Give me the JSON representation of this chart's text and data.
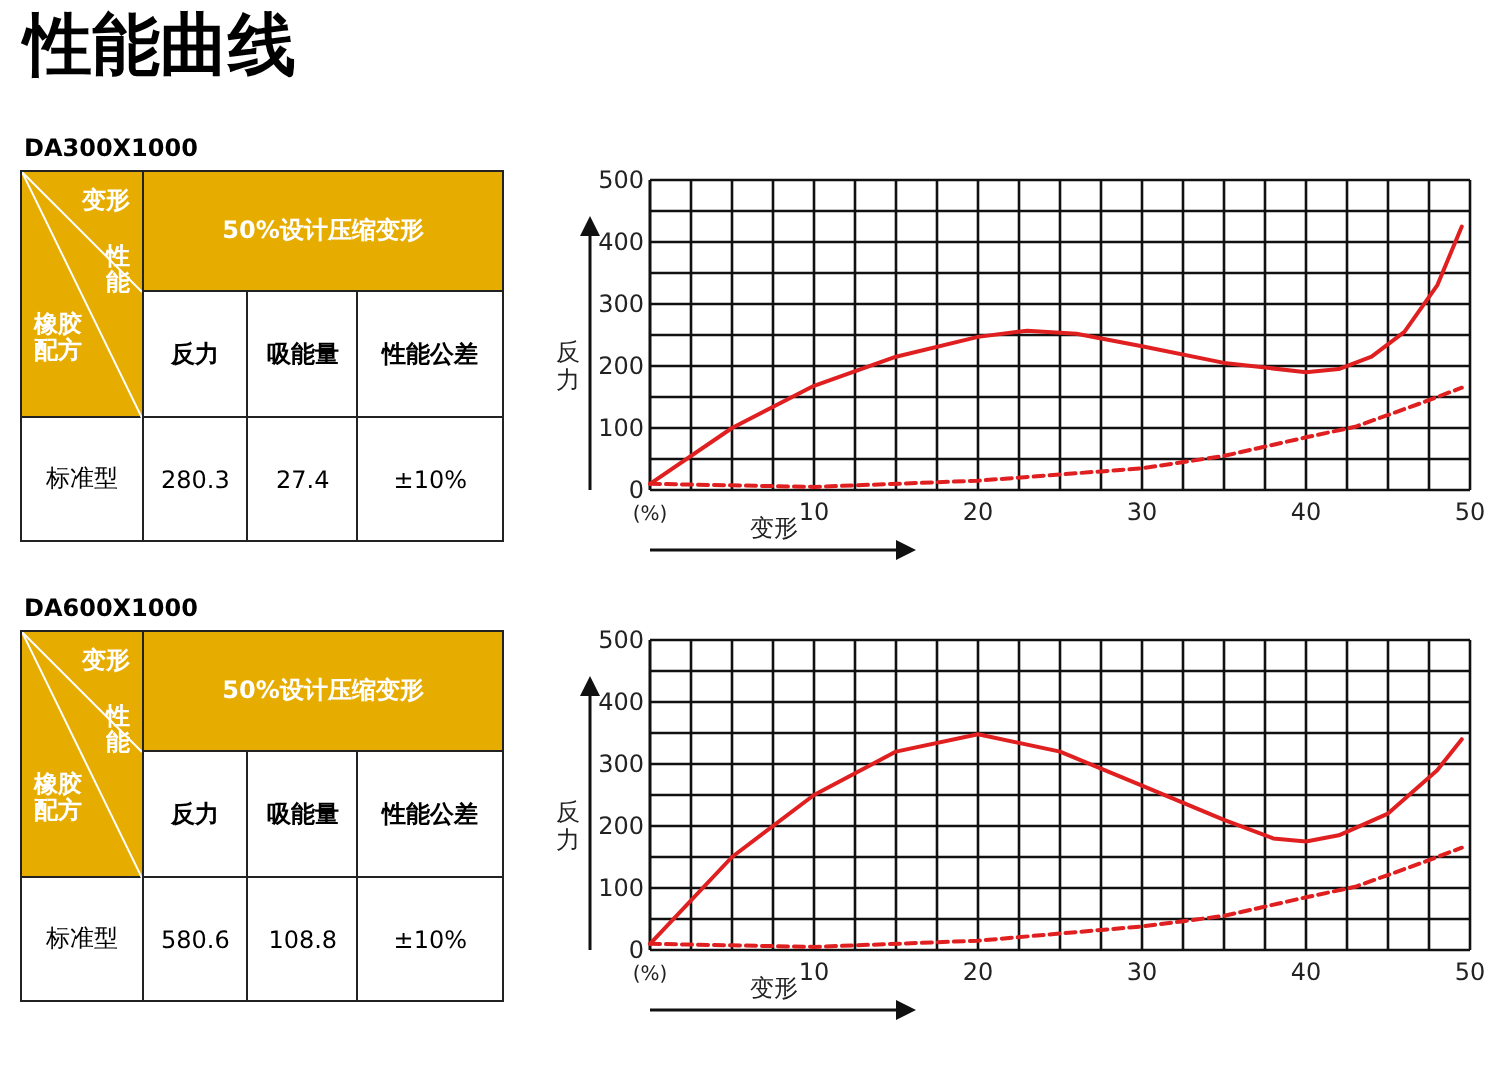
{
  "chart_data": [
    {
      "type": "other",
      "title": "性能曲线",
      "subtitle": "DA300X1000",
      "annotations": [
        "变形",
        "性能",
        "橡胶配方",
        "50%设计压缩变形",
        "反力",
        "吸能量",
        "性能公差",
        "标准型",
        "280.3",
        "27.4",
        "±10%"
      ]
    },
    {
      "type": "line",
      "xlabel": "变形",
      "ylabel": "反力",
      "xlim": [
        0,
        50
      ],
      "ylim": [
        0,
        500
      ],
      "grid": true,
      "xticks": [
        {
          "value": 0,
          "label": "(%)"
        },
        {
          "value": 2.5,
          "label": null
        },
        {
          "value": 5,
          "label": null
        },
        {
          "value": 7.5,
          "label": null
        },
        10,
        {
          "value": 12.5,
          "label": null
        },
        {
          "value": 15,
          "label": null
        },
        {
          "value": 17.5,
          "label": null
        },
        20,
        {
          "value": 22.5,
          "label": null
        },
        {
          "value": 25,
          "label": null
        },
        {
          "value": 27.5,
          "label": null
        },
        30,
        {
          "value": 32.5,
          "label": null
        },
        {
          "value": 35,
          "label": null
        },
        {
          "value": 37.5,
          "label": null
        },
        40,
        {
          "value": 42.5,
          "label": null
        },
        {
          "value": 45,
          "label": null
        },
        {
          "value": 47.5,
          "label": null
        },
        50
      ],
      "yticks": [
        0,
        {
          "value": 50,
          "label": null
        },
        100,
        {
          "value": 150,
          "label": null
        },
        200,
        {
          "value": 250,
          "label": null
        },
        300,
        {
          "value": 350,
          "label": null
        },
        400,
        {
          "value": 450,
          "label": null
        },
        500
      ],
      "series": [
        {
          "color": "#e02020",
          "line_style": "solid",
          "x": [
            0,
            5,
            10,
            15,
            20,
            23,
            26,
            30,
            35,
            40,
            42,
            44,
            46,
            48,
            49.5
          ],
          "values": [
            10,
            100,
            168,
            215,
            247,
            257,
            252,
            232,
            205,
            190,
            195,
            215,
            255,
            330,
            425
          ]
        },
        {
          "color": "#e02020",
          "line_style": "dashed",
          "x": [
            0,
            10,
            20,
            30,
            35,
            40,
            43,
            47,
            49.5
          ],
          "values": [
            10,
            5,
            15,
            35,
            55,
            85,
            102,
            140,
            165
          ]
        }
      ]
    },
    {
      "type": "other",
      "subtitle": "DA600X1000",
      "annotations": [
        "变形",
        "性能",
        "橡胶配方",
        "50%设计压缩变形",
        "反力",
        "吸能量",
        "性能公差",
        "标准型",
        "580.6",
        "108.8",
        "±10%"
      ]
    },
    {
      "type": "line",
      "xlabel": "变形",
      "ylabel": "反力",
      "xlim": [
        0,
        50
      ],
      "ylim": [
        0,
        500
      ],
      "grid": true,
      "xticks": [
        {
          "value": 0,
          "label": "(%)"
        },
        {
          "value": 2.5,
          "label": null
        },
        {
          "value": 5,
          "label": null
        },
        {
          "value": 7.5,
          "label": null
        },
        10,
        {
          "value": 12.5,
          "label": null
        },
        {
          "value": 15,
          "label": null
        },
        {
          "value": 17.5,
          "label": null
        },
        20,
        {
          "value": 22.5,
          "label": null
        },
        {
          "value": 25,
          "label": null
        },
        {
          "value": 27.5,
          "label": null
        },
        30,
        {
          "value": 32.5,
          "label": null
        },
        {
          "value": 35,
          "label": null
        },
        {
          "value": 37.5,
          "label": null
        },
        40,
        {
          "value": 42.5,
          "label": null
        },
        {
          "value": 45,
          "label": null
        },
        {
          "value": 47.5,
          "label": null
        },
        50
      ],
      "yticks": [
        0,
        {
          "value": 50,
          "label": null
        },
        100,
        {
          "value": 150,
          "label": null
        },
        200,
        {
          "value": 250,
          "label": null
        },
        300,
        {
          "value": 350,
          "label": null
        },
        400,
        {
          "value": 450,
          "label": null
        },
        500
      ],
      "series": [
        {
          "color": "#e02020",
          "line_style": "solid",
          "x": [
            0,
            5,
            10,
            15,
            20,
            25,
            30,
            35,
            38,
            40,
            42,
            45,
            48,
            49.5
          ],
          "values": [
            10,
            150,
            250,
            320,
            348,
            320,
            265,
            210,
            180,
            175,
            185,
            220,
            290,
            340
          ]
        },
        {
          "color": "#e02020",
          "line_style": "dashed",
          "x": [
            0,
            10,
            20,
            30,
            35,
            40,
            43,
            47,
            49.5
          ],
          "values": [
            10,
            5,
            15,
            38,
            55,
            85,
            102,
            140,
            165
          ]
        }
      ]
    }
  ]
}
